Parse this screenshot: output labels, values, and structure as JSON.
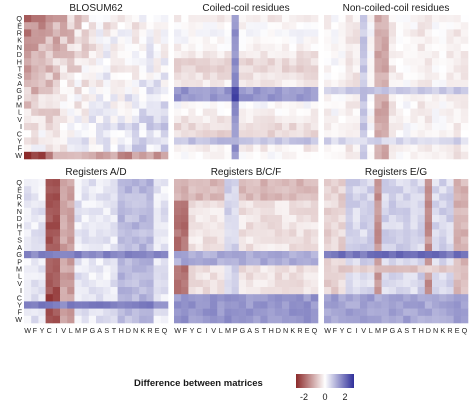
{
  "chart_data": {
    "type": "heatmap",
    "row_labels": [
      "Q",
      "E",
      "R",
      "K",
      "N",
      "D",
      "H",
      "T",
      "S",
      "A",
      "G",
      "P",
      "M",
      "L",
      "V",
      "I",
      "C",
      "Y",
      "F",
      "W"
    ],
    "col_labels": [
      "W",
      "F",
      "Y",
      "C",
      "I",
      "V",
      "L",
      "M",
      "P",
      "G",
      "A",
      "S",
      "T",
      "H",
      "D",
      "N",
      "K",
      "R",
      "E",
      "Q"
    ],
    "panels": [
      {
        "title": "BLOSUM62"
      },
      {
        "title": "Coiled-coil residues"
      },
      {
        "title": "Non-coiled-coil residues"
      },
      {
        "title": "Registers A/D"
      },
      {
        "title": "Registers B/C/F"
      },
      {
        "title": "Registers E/G"
      }
    ],
    "legend": {
      "title": "Difference between matrices",
      "ticks": [
        "-2",
        "0",
        "2"
      ],
      "range": [
        -3,
        3
      ],
      "colors": {
        "negative": "#8b2a2a",
        "neutral": "#ffffff",
        "positive": "#2f2f9a"
      }
    }
  }
}
